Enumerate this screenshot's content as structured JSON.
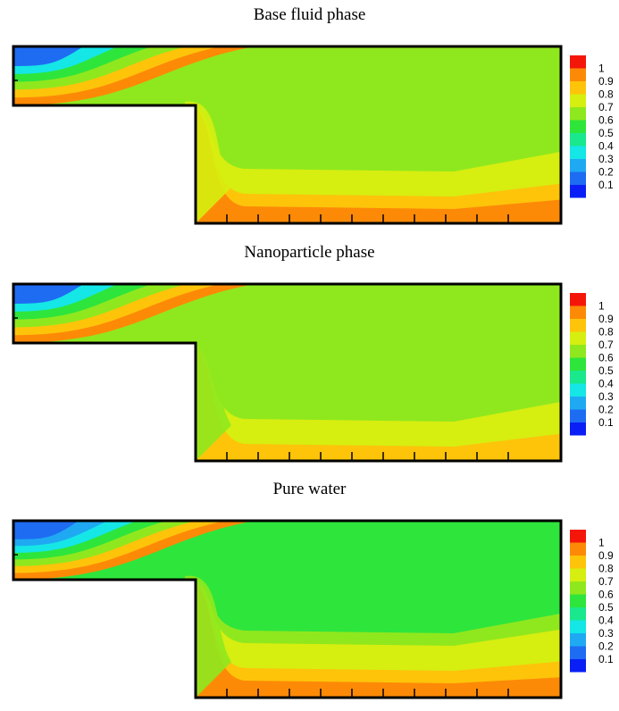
{
  "colors": {
    "scale": [
      "#0a1ff5",
      "#1e6cf2",
      "#1fa9f2",
      "#15e6e6",
      "#19e88c",
      "#2ee53c",
      "#8fe81e",
      "#d6ee10",
      "#fdc40a",
      "#fd8a07",
      "#f5160a"
    ],
    "outline": "#000000"
  },
  "chart_data": [
    {
      "type": "heatmap",
      "title": "Base fluid phase",
      "legend": {
        "placement": "right",
        "ticks": [
          "1",
          "0.9",
          "0.8",
          "0.7",
          "0.6",
          "0.5",
          "0.4",
          "0.3",
          "0.2",
          "0.1"
        ]
      },
      "field": {
        "inlet": [
          0.1,
          0.25,
          0.45,
          0.6,
          0.75,
          0.9
        ],
        "main": 0.6,
        "wall_layers": [
          0.65,
          0.7,
          0.8,
          0.9
        ],
        "step_corner_spill": 0.65
      }
    },
    {
      "type": "heatmap",
      "title": "Nanoparticle phase",
      "legend": {
        "placement": "right",
        "ticks": [
          "1",
          "0.9",
          "0.8",
          "0.7",
          "0.6",
          "0.5",
          "0.4",
          "0.3",
          "0.2",
          "0.1"
        ]
      },
      "field": {
        "inlet": [
          0.1,
          0.25,
          0.45,
          0.6,
          0.75,
          0.9
        ],
        "main": 0.6,
        "wall_layers": [
          0.65,
          0.7,
          0.8
        ],
        "step_corner_spill": 0.6
      }
    },
    {
      "type": "heatmap",
      "title": "Pure water",
      "legend": {
        "placement": "right",
        "ticks": [
          "1",
          "0.9",
          "0.8",
          "0.7",
          "0.6",
          "0.5",
          "0.4",
          "0.3",
          "0.2",
          "0.1"
        ]
      },
      "field": {
        "inlet": [
          0.05,
          0.15,
          0.3,
          0.45,
          0.6,
          0.75,
          0.9
        ],
        "main": 0.5,
        "wall_layers": [
          0.55,
          0.65,
          0.7,
          0.8,
          0.9
        ],
        "step_corner_spill": 0.6
      }
    }
  ]
}
